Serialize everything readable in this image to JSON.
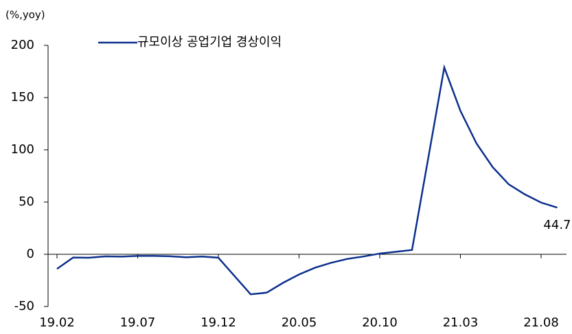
{
  "chart_data": {
    "type": "line",
    "y_axis_label": "(%,yoy)",
    "categories": [
      "19.02",
      null,
      null,
      null,
      null,
      "19.07",
      null,
      null,
      null,
      null,
      "19.12",
      null,
      null,
      null,
      null,
      "20.05",
      null,
      null,
      null,
      null,
      "20.10",
      null,
      null,
      null,
      null,
      "21.03",
      null,
      null,
      null,
      null,
      "21.08",
      null
    ],
    "series": [
      {
        "name": "규모이상 공업기업 경상이익",
        "color": "#0a2f8c",
        "values": [
          -14,
          -3.1,
          -3.3,
          -2.0,
          -2.2,
          -1.6,
          -1.6,
          -1.9,
          -2.9,
          -2.1,
          -3.3,
          null,
          -38.3,
          -36.7,
          -27.4,
          -19.3,
          -12.8,
          -8.1,
          -4.4,
          -2.1,
          0.7,
          2.4,
          4.1,
          null,
          178.9,
          137.3,
          106,
          83.4,
          66.9,
          57.3,
          49.5,
          44.7
        ],
        "value_labels": [
          null,
          null,
          null,
          null,
          null,
          null,
          null,
          null,
          null,
          null,
          null,
          null,
          null,
          null,
          null,
          null,
          null,
          null,
          null,
          null,
          null,
          null,
          null,
          null,
          null,
          null,
          null,
          null,
          null,
          null,
          null,
          "44.7"
        ]
      }
    ],
    "ylim": [
      -50,
      200
    ],
    "yticks": [
      -50,
      0,
      50,
      100,
      150,
      200
    ],
    "grid": false,
    "legend": "top"
  }
}
